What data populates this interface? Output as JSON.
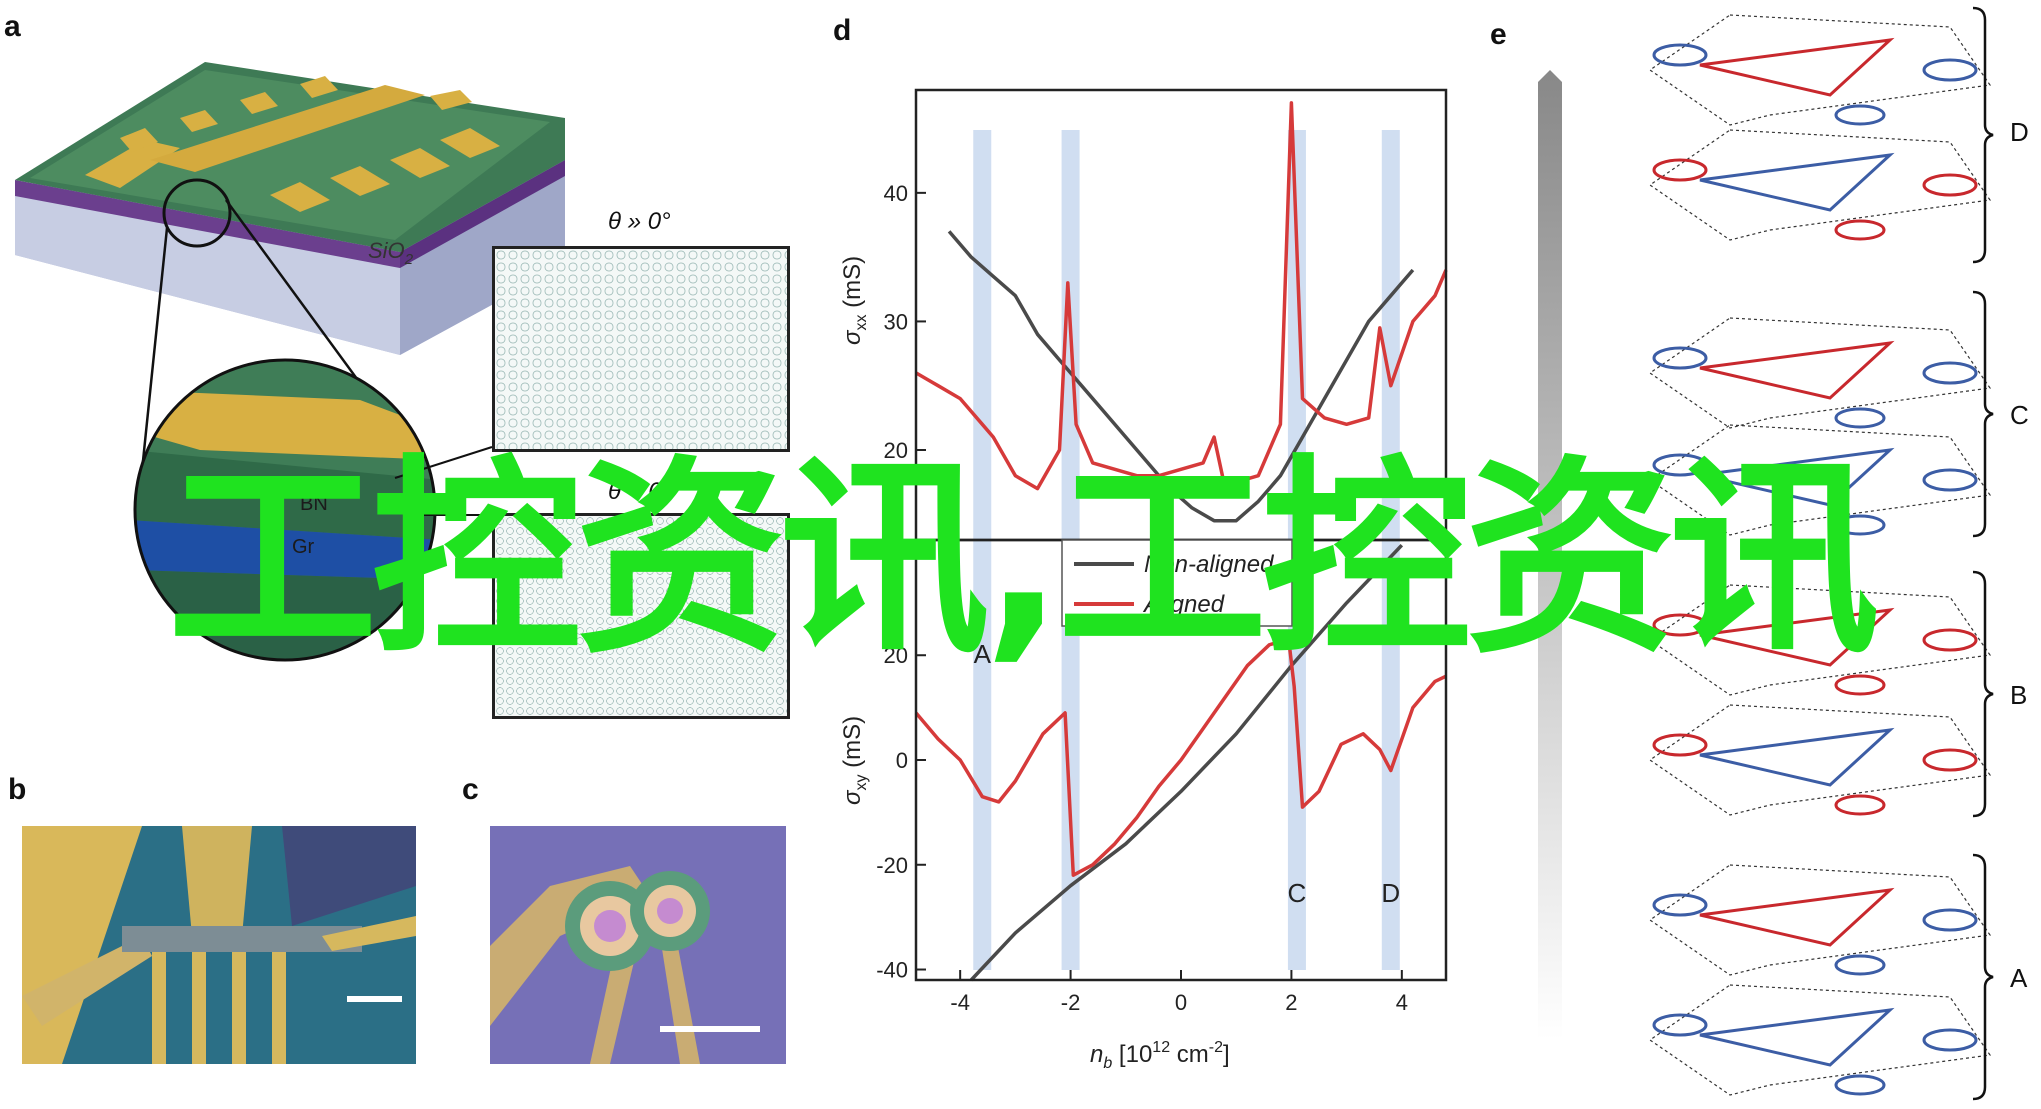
{
  "panels": {
    "a": {
      "letter": "a",
      "substrate_label": "SiO",
      "substrate_sub": "2",
      "bn_label": "BN",
      "gr_label": "Gr",
      "inset_top": {
        "theta": "θ » 0°"
      },
      "inset_bottom": {
        "theta": "θ ~ 0°"
      }
    },
    "b": {
      "letter": "b"
    },
    "c": {
      "letter": "c"
    },
    "d": {
      "letter": "d"
    },
    "e": {
      "letter": "e",
      "braces": [
        "D",
        "C",
        "B",
        "A"
      ]
    }
  },
  "watermark": {
    "text": "工控资讯,工控资讯"
  },
  "colors": {
    "non_aligned": "#4a4a4a",
    "aligned": "#d63a3a",
    "band": "#a9c3e6",
    "watermark": "#1fe31f",
    "contour_red": "#c8282d",
    "contour_blue": "#3c5da5"
  },
  "chart_data": {
    "type": "line",
    "xlabel_parts": {
      "main": "n",
      "sub": "b",
      "rest": " [10",
      "sup": "12",
      "unit": " cm",
      "unitsup": "-2",
      "close": "]"
    },
    "x_ticks": [
      "-4",
      "-2",
      "0",
      "2",
      "4"
    ],
    "xlim": [
      -4.8,
      4.8
    ],
    "legend": [
      "Non-aligned",
      "Aligned"
    ],
    "band_positions": [
      -3.6,
      -2.0,
      2.1,
      3.8
    ],
    "band_labels": [
      {
        "x": -3.6,
        "label": "A"
      },
      {
        "x": 2.1,
        "label": "C"
      },
      {
        "x": 3.8,
        "label": "D"
      }
    ],
    "top": {
      "ylabel_main": "σ",
      "ylabel_sub": "xx",
      "ylabel_unit": " (mS)",
      "ylim": [
        13,
        48
      ],
      "y_ticks": [
        "20",
        "30",
        "40"
      ],
      "series": [
        {
          "name": "Non-aligned",
          "x": [
            -4.2,
            -3.8,
            -3.4,
            -3.0,
            -2.6,
            -2.2,
            -1.8,
            -1.4,
            -1.0,
            -0.6,
            -0.2,
            0.2,
            0.6,
            1.0,
            1.4,
            1.8,
            2.2,
            2.6,
            3.0,
            3.4,
            3.8,
            4.2
          ],
          "y": [
            37,
            35,
            33.5,
            32,
            29,
            27,
            25,
            23,
            21,
            19,
            17,
            15.5,
            14.5,
            14.5,
            16,
            18,
            21,
            24,
            27,
            30,
            32,
            34
          ]
        },
        {
          "name": "Aligned",
          "x": [
            -4.8,
            -4.4,
            -4.0,
            -3.6,
            -3.4,
            -3.0,
            -2.6,
            -2.2,
            -2.05,
            -1.9,
            -1.6,
            -1.2,
            -0.8,
            -0.4,
            0.0,
            0.4,
            0.6,
            0.8,
            1.0,
            1.4,
            1.8,
            2.0,
            2.2,
            2.6,
            3.0,
            3.4,
            3.6,
            3.8,
            4.2,
            4.6,
            4.8
          ],
          "y": [
            26,
            25,
            24,
            22,
            21,
            18,
            17,
            20,
            33,
            22,
            19,
            18.5,
            18,
            18,
            18.5,
            19,
            21,
            17,
            17.5,
            18,
            22,
            47,
            24,
            22.5,
            22,
            22.5,
            29.5,
            25,
            30,
            32,
            34
          ]
        }
      ]
    },
    "bottom": {
      "ylabel_main": "σ",
      "ylabel_sub": "xy",
      "ylabel_unit": " (mS)",
      "ylim": [
        -42,
        42
      ],
      "y_ticks": [
        "-40",
        "-20",
        "0",
        "20",
        "40"
      ],
      "series": [
        {
          "name": "Non-aligned",
          "x": [
            -3.8,
            -3.0,
            -2.0,
            -1.0,
            0.0,
            1.0,
            2.0,
            3.0,
            4.0
          ],
          "y": [
            -42,
            -33,
            -24,
            -16,
            -6,
            5,
            18,
            30,
            41
          ]
        },
        {
          "name": "Aligned",
          "x": [
            -4.8,
            -4.4,
            -4.0,
            -3.6,
            -3.3,
            -3.0,
            -2.5,
            -2.1,
            -1.95,
            -1.6,
            -1.2,
            -0.8,
            -0.4,
            0.0,
            0.4,
            0.8,
            1.2,
            1.6,
            1.95,
            2.05,
            2.2,
            2.5,
            2.9,
            3.3,
            3.6,
            3.8,
            4.2,
            4.6,
            4.8
          ],
          "y": [
            9,
            4,
            0,
            -7,
            -8,
            -4,
            5,
            9,
            -22,
            -20,
            -16,
            -11,
            -5,
            0,
            6,
            12,
            18,
            22,
            23,
            14,
            -9,
            -6,
            3,
            5,
            2,
            -2,
            10,
            15,
            16
          ]
        }
      ]
    }
  }
}
